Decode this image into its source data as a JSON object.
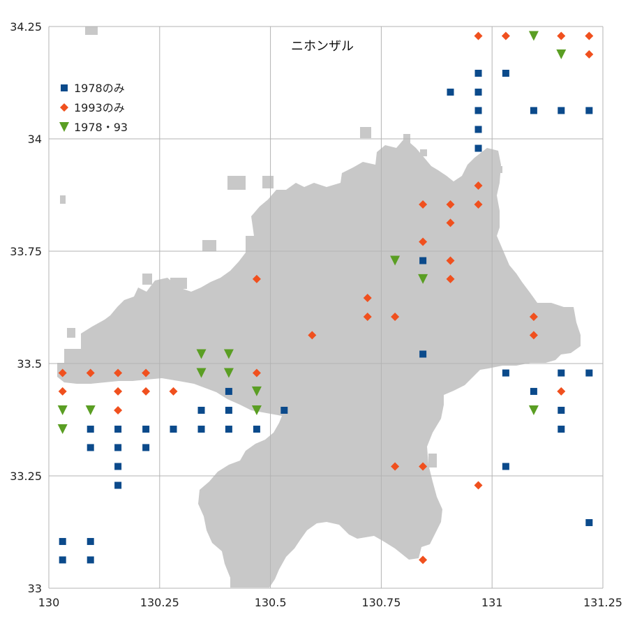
{
  "chart_data": {
    "type": "scatter",
    "title": "ニホンザル",
    "xlabel": "",
    "ylabel": "",
    "xlim": [
      130,
      131.25
    ],
    "ylim": [
      33,
      34.25
    ],
    "xticks": [
      "130",
      "130.25",
      "130.5",
      "130.75",
      "131",
      "131.25"
    ],
    "yticks": [
      "33",
      "33.25",
      "33.5",
      "33.75",
      "34",
      "34.25"
    ],
    "xtick_values": [
      130,
      130.25,
      130.5,
      130.75,
      131,
      131.25
    ],
    "ytick_values": [
      33,
      33.25,
      33.5,
      33.75,
      34,
      34.25
    ],
    "grid": true,
    "legend_position": "top-left",
    "background_shape": "map-of-fukuoka-prefecture",
    "series": [
      {
        "name": "1978のみ",
        "marker": "square",
        "color": "#0b4a8b",
        "points": [
          [
            130.969,
            34.146
          ],
          [
            131.031,
            34.146
          ],
          [
            130.906,
            34.104
          ],
          [
            130.969,
            34.104
          ],
          [
            130.969,
            34.063
          ],
          [
            131.094,
            34.063
          ],
          [
            131.156,
            34.063
          ],
          [
            131.219,
            34.063
          ],
          [
            130.969,
            34.021
          ],
          [
            130.969,
            33.979
          ],
          [
            130.844,
            33.729
          ],
          [
            130.844,
            33.521
          ],
          [
            131.031,
            33.479
          ],
          [
            131.156,
            33.479
          ],
          [
            131.219,
            33.479
          ],
          [
            131.094,
            33.438
          ],
          [
            130.406,
            33.438
          ],
          [
            130.344,
            33.396
          ],
          [
            130.406,
            33.396
          ],
          [
            130.531,
            33.396
          ],
          [
            131.156,
            33.396
          ],
          [
            130.094,
            33.354
          ],
          [
            130.156,
            33.354
          ],
          [
            130.219,
            33.354
          ],
          [
            130.281,
            33.354
          ],
          [
            130.344,
            33.354
          ],
          [
            130.406,
            33.354
          ],
          [
            130.469,
            33.354
          ],
          [
            131.156,
            33.354
          ],
          [
            130.094,
            33.313
          ],
          [
            130.156,
            33.313
          ],
          [
            130.219,
            33.313
          ],
          [
            130.156,
            33.271
          ],
          [
            131.031,
            33.271
          ],
          [
            130.156,
            33.229
          ],
          [
            131.219,
            33.146
          ],
          [
            130.031,
            33.104
          ],
          [
            130.094,
            33.104
          ],
          [
            130.031,
            33.063
          ],
          [
            130.094,
            33.063
          ]
        ]
      },
      {
        "name": "1993のみ",
        "marker": "diamond",
        "color": "#f0501e",
        "points": [
          [
            130.969,
            34.229
          ],
          [
            131.031,
            34.229
          ],
          [
            131.156,
            34.229
          ],
          [
            131.219,
            34.229
          ],
          [
            131.219,
            34.188
          ],
          [
            130.969,
            33.896
          ],
          [
            130.844,
            33.854
          ],
          [
            130.906,
            33.854
          ],
          [
            130.969,
            33.854
          ],
          [
            130.906,
            33.813
          ],
          [
            130.844,
            33.771
          ],
          [
            130.906,
            33.729
          ],
          [
            130.469,
            33.688
          ],
          [
            130.906,
            33.688
          ],
          [
            130.719,
            33.646
          ],
          [
            130.719,
            33.604
          ],
          [
            130.781,
            33.604
          ],
          [
            131.094,
            33.604
          ],
          [
            130.594,
            33.563
          ],
          [
            131.094,
            33.563
          ],
          [
            130.031,
            33.479
          ],
          [
            130.094,
            33.479
          ],
          [
            130.156,
            33.479
          ],
          [
            130.219,
            33.479
          ],
          [
            130.469,
            33.479
          ],
          [
            130.031,
            33.438
          ],
          [
            130.156,
            33.438
          ],
          [
            130.219,
            33.438
          ],
          [
            130.281,
            33.438
          ],
          [
            131.156,
            33.438
          ],
          [
            130.156,
            33.396
          ],
          [
            130.781,
            33.271
          ],
          [
            130.844,
            33.271
          ],
          [
            130.969,
            33.229
          ],
          [
            130.844,
            33.063
          ]
        ]
      },
      {
        "name": "1978・93",
        "marker": "triangle-down",
        "color": "#5a9e23",
        "points": [
          [
            131.094,
            34.229
          ],
          [
            131.156,
            34.188
          ],
          [
            130.781,
            33.729
          ],
          [
            130.844,
            33.688
          ],
          [
            130.344,
            33.521
          ],
          [
            130.406,
            33.521
          ],
          [
            130.344,
            33.479
          ],
          [
            130.406,
            33.479
          ],
          [
            130.469,
            33.438
          ],
          [
            130.031,
            33.396
          ],
          [
            130.094,
            33.396
          ],
          [
            130.469,
            33.396
          ],
          [
            131.094,
            33.396
          ],
          [
            130.031,
            33.354
          ]
        ]
      }
    ]
  }
}
